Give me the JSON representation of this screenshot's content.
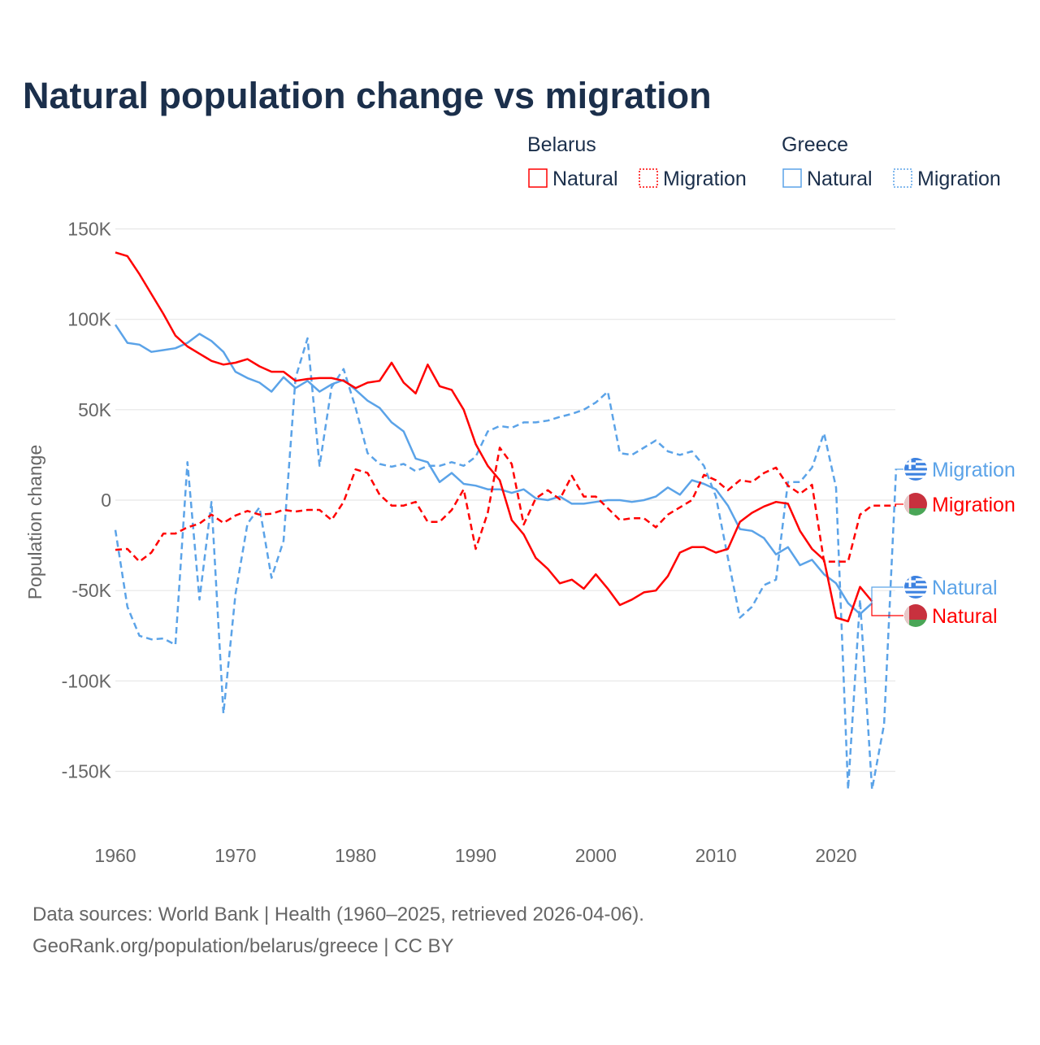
{
  "chart_data": {
    "type": "line",
    "title": "Natural population change vs migration",
    "xlabel": "",
    "ylabel": "Population change",
    "xlim": [
      1960,
      2025
    ],
    "ylim": [
      -150000,
      150000
    ],
    "y_ticks": [
      150000,
      100000,
      50000,
      0,
      -50000,
      -100000,
      -150000
    ],
    "y_tick_labels": [
      "150K",
      "100K",
      "50K",
      "0",
      "-50K",
      "-100K",
      "-150K"
    ],
    "x_ticks": [
      1960,
      1970,
      1980,
      1990,
      2000,
      2010,
      2020
    ],
    "x_tick_labels": [
      "1960",
      "1970",
      "1980",
      "1990",
      "2000",
      "2010",
      "2020"
    ],
    "grid": true,
    "legend": {
      "placement": "top-right",
      "groups": [
        {
          "name": "Belarus",
          "entries": [
            "Natural",
            "Migration"
          ]
        },
        {
          "name": "Greece",
          "entries": [
            "Natural",
            "Migration"
          ]
        }
      ]
    },
    "series": [
      {
        "name": "Belarus Natural",
        "country": "Belarus",
        "kind": "Natural",
        "color": "#ff0000",
        "dashed": false,
        "start_year": 1960,
        "end_label": "Natural",
        "values": [
          137000,
          135000,
          125000,
          114000,
          103000,
          91000,
          85000,
          81000,
          77000,
          75000,
          76000,
          78000,
          74000,
          71000,
          71000,
          66000,
          67000,
          67500,
          67500,
          66000,
          62000,
          65000,
          66000,
          76000,
          65000,
          59000,
          75000,
          63000,
          61000,
          50000,
          31000,
          19000,
          11000,
          -11000,
          -19000,
          -32000,
          -38000,
          -46000,
          -44000,
          -49000,
          -41000,
          -49000,
          -58000,
          -55000,
          -51000,
          -50000,
          -42000,
          -29000,
          -26000,
          -26000,
          -29000,
          -27000,
          -12000,
          -7000,
          -3500,
          -1000,
          -2000,
          -17000,
          -27000,
          -33000,
          -65000,
          -67000,
          -48000,
          -56000
        ]
      },
      {
        "name": "Belarus Migration",
        "country": "Belarus",
        "kind": "Migration",
        "color": "#ff0000",
        "dashed": true,
        "start_year": 1960,
        "end_label": "Migration",
        "values": [
          -27500,
          -27000,
          -34000,
          -29000,
          -18500,
          -18500,
          -15000,
          -13000,
          -8000,
          -12600,
          -8500,
          -6000,
          -8000,
          -7500,
          -5400,
          -6300,
          -5400,
          -5400,
          -11000,
          -1000,
          17000,
          15000,
          3000,
          -3000,
          -3000,
          -1000,
          -12000,
          -12000,
          -5500,
          6000,
          -27000,
          -7000,
          29000,
          20000,
          -13500,
          1000,
          5500,
          500,
          13500,
          2000,
          2000,
          -4500,
          -11000,
          -10000,
          -10000,
          -15000,
          -8000,
          -4000,
          0,
          14000,
          11000,
          5500,
          11000,
          10000,
          15000,
          18000,
          8000,
          3500,
          8500,
          -34000,
          -34000,
          -34000,
          -8000,
          -3000,
          -3000,
          -3000
        ]
      },
      {
        "name": "Greece Natural",
        "country": "Greece",
        "kind": "Natural",
        "color": "#5ba3e8",
        "dashed": false,
        "start_year": 1960,
        "end_label": "Natural",
        "values": [
          97000,
          87000,
          86000,
          82000,
          83000,
          84000,
          87000,
          92000,
          88000,
          82000,
          71000,
          67500,
          65000,
          60000,
          68000,
          62000,
          66000,
          60000,
          64000,
          66500,
          61000,
          55000,
          51000,
          43000,
          38000,
          23000,
          21000,
          10000,
          15000,
          9000,
          8000,
          6000,
          6000,
          4000,
          6000,
          1000,
          0,
          2000,
          -2000,
          -2000,
          -1000,
          0,
          0,
          -1000,
          0,
          2000,
          7000,
          3000,
          11000,
          9000,
          6000,
          -3000,
          -16000,
          -17000,
          -21000,
          -30000,
          -26000,
          -36000,
          -33000,
          -41000,
          -46000,
          -57000,
          -63000,
          -57000
        ]
      },
      {
        "name": "Greece Migration",
        "country": "Greece",
        "kind": "Migration",
        "color": "#5ba3e8",
        "dashed": true,
        "start_year": 1960,
        "end_label": "Migration",
        "values": [
          -16500,
          -59000,
          -75000,
          -77000,
          -76500,
          -80000,
          21000,
          -55000,
          -1000,
          -118000,
          -52000,
          -13000,
          -4000,
          -43000,
          -22500,
          67500,
          89500,
          19000,
          62500,
          72500,
          51000,
          26000,
          20000,
          18500,
          20000,
          16000,
          19000,
          19000,
          21000,
          19000,
          24000,
          38000,
          41000,
          40000,
          43000,
          43000,
          44000,
          46000,
          47700,
          50000,
          54000,
          60000,
          26000,
          25000,
          29000,
          33000,
          27000,
          25000,
          27000,
          19000,
          2000,
          -32000,
          -65000,
          -59000,
          -47000,
          -44000,
          10000,
          10000,
          18000,
          37000,
          7000,
          -160000,
          -55000,
          -160000,
          -124000,
          17000
        ]
      }
    ]
  },
  "footer": {
    "line1": "Data sources: World Bank | Health (1960–2025, retrieved 2026-04-06).",
    "line2": "GeoRank.org/population/belarus/greece | CC BY"
  },
  "colors": {
    "title": "#1b2f4b",
    "belarus": "#ff0000",
    "greece": "#5ba3e8",
    "grid": "#e6e6e6",
    "muted": "#666666"
  }
}
